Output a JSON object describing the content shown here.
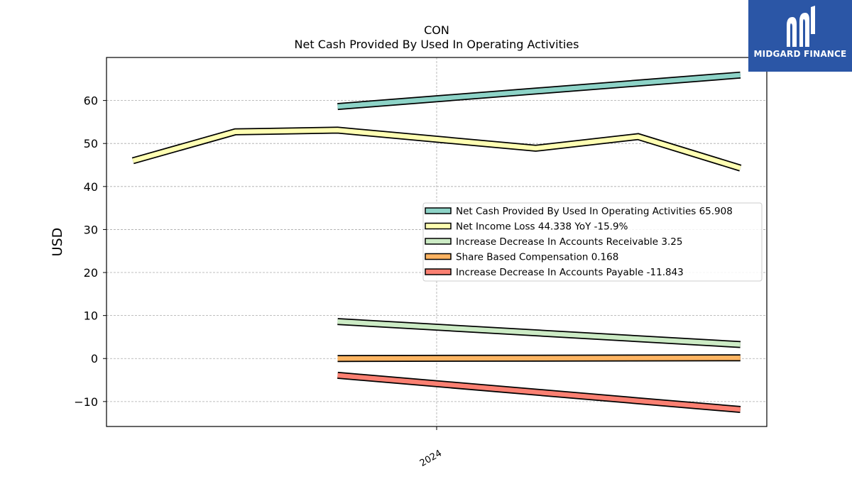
{
  "chart_data": {
    "type": "line",
    "title": "CON",
    "subtitle": "Net Cash Provided By Used In Operating Activities",
    "ylabel": "USD",
    "xlabel": "",
    "ylim": [
      -15.8,
      70
    ],
    "yticks": [
      -10,
      0,
      10,
      20,
      30,
      40,
      50,
      60
    ],
    "ytick_labels": [
      "−10",
      "0",
      "10",
      "20",
      "30",
      "40",
      "50",
      "60"
    ],
    "xlim": [
      0,
      10
    ],
    "x_ticks": [
      {
        "x": 5,
        "label": "2024"
      }
    ],
    "grid": true,
    "legend_position": "center-right",
    "series": [
      {
        "name": "Net Cash Provided By Used In Operating Activities  65.908",
        "color": "#8dd3c7",
        "points": [
          [
            3.5,
            58.6
          ],
          [
            9.6,
            65.9
          ]
        ]
      },
      {
        "name": "Net Income Loss  44.338 YoY -15.9%",
        "color": "#ffffb3",
        "points": [
          [
            0.4,
            46.0
          ],
          [
            1.95,
            52.7
          ],
          [
            3.5,
            53.1
          ],
          [
            6.5,
            48.9
          ],
          [
            8.05,
            51.6
          ],
          [
            9.6,
            44.3
          ]
        ]
      },
      {
        "name": "Increase Decrease In Accounts Receivable  3.25",
        "color": "#ccebc5",
        "points": [
          [
            3.5,
            8.6
          ],
          [
            9.6,
            3.25
          ]
        ]
      },
      {
        "name": "Share Based Compensation  0.168",
        "color": "#fdb462",
        "points": [
          [
            3.5,
            0.0
          ],
          [
            9.6,
            0.168
          ]
        ]
      },
      {
        "name": "Increase Decrease In Accounts Payable  -11.843",
        "color": "#fb8072",
        "points": [
          [
            3.5,
            -3.9
          ],
          [
            9.6,
            -11.843
          ]
        ]
      }
    ]
  },
  "logo": {
    "text": "MIDGARD FINANCE",
    "background": "#2b56a6"
  }
}
